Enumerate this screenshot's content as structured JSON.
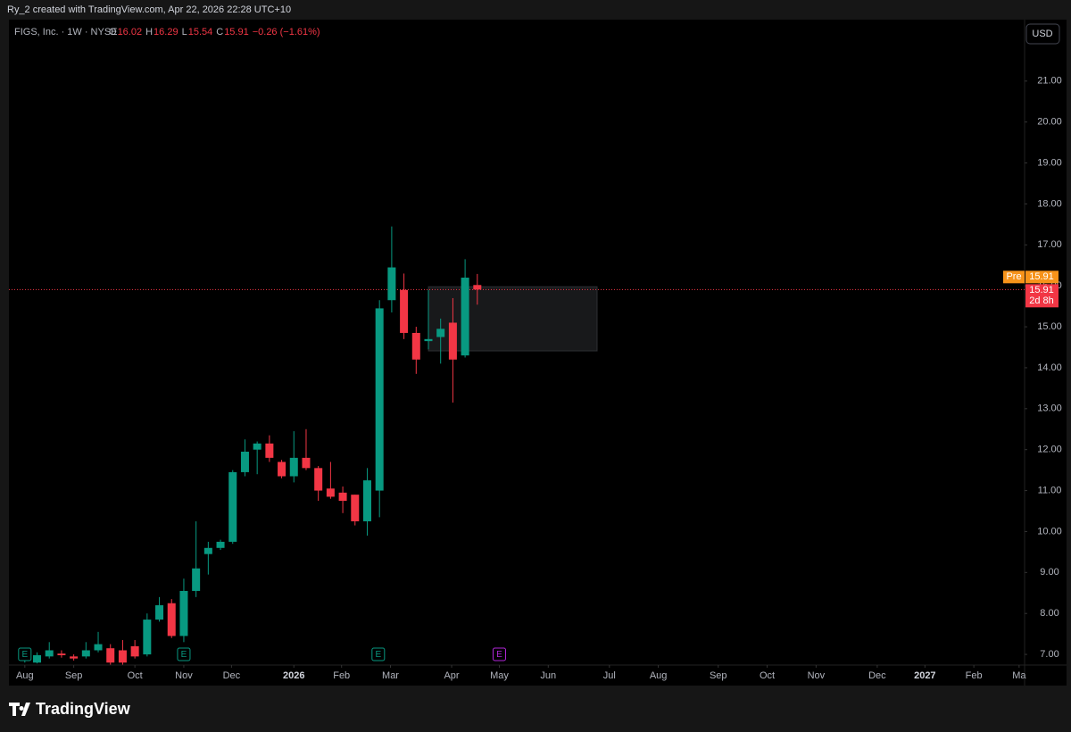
{
  "header": {
    "caption": "Ry_2 created with TradingView.com, Apr 22, 2026 22:28 UTC+10"
  },
  "chart_data": {
    "type": "candlestick",
    "title": "FIGS, Inc. · 1W · NYSE",
    "ohlc_keys": [
      "O",
      "H",
      "L",
      "C"
    ],
    "change": "−0.26 (−1.61%)",
    "currency": "USD",
    "x": [
      0,
      1,
      2,
      3,
      4,
      5,
      6,
      7,
      8,
      9,
      10,
      11,
      12,
      13,
      14,
      15,
      16,
      17,
      18,
      19,
      20,
      21,
      22,
      23,
      24,
      25,
      26,
      27,
      28,
      29,
      30,
      31,
      32,
      33,
      34,
      35,
      36,
      37
    ],
    "open": [
      6.85,
      6.8,
      6.95,
      7.02,
      6.95,
      6.95,
      7.1,
      7.15,
      7.1,
      7.2,
      7.0,
      7.85,
      8.25,
      7.45,
      8.55,
      9.45,
      9.6,
      9.75,
      11.45,
      12.0,
      12.15,
      11.7,
      11.35,
      11.8,
      11.55,
      11.05,
      10.95,
      10.9,
      10.25,
      11.0,
      15.65,
      15.9,
      14.85,
      14.65,
      14.75,
      15.1,
      14.3,
      16.02
    ],
    "high": [
      7.0,
      7.05,
      7.3,
      7.1,
      7.0,
      7.3,
      7.55,
      7.25,
      7.35,
      7.35,
      8.0,
      8.4,
      8.35,
      8.85,
      10.25,
      9.75,
      9.8,
      11.5,
      12.25,
      12.2,
      12.35,
      11.75,
      12.45,
      12.5,
      11.6,
      11.7,
      11.1,
      10.9,
      11.55,
      15.65,
      17.45,
      16.3,
      15.0,
      15.9,
      15.2,
      15.7,
      16.65,
      16.29
    ],
    "low": [
      6.8,
      6.78,
      6.9,
      6.92,
      6.85,
      6.9,
      7.05,
      6.75,
      6.75,
      6.9,
      6.95,
      7.8,
      7.4,
      7.3,
      8.4,
      8.95,
      9.55,
      9.7,
      11.35,
      11.4,
      11.7,
      11.3,
      11.2,
      11.5,
      10.75,
      10.8,
      10.45,
      10.15,
      9.9,
      10.35,
      15.35,
      14.7,
      13.85,
      14.45,
      14.1,
      13.15,
      14.25,
      15.54
    ],
    "close": [
      6.95,
      6.98,
      7.1,
      6.98,
      6.9,
      7.1,
      7.25,
      6.8,
      6.8,
      6.95,
      7.85,
      8.2,
      7.45,
      8.55,
      9.1,
      9.6,
      9.75,
      11.45,
      11.95,
      12.15,
      11.8,
      11.35,
      11.8,
      11.55,
      11.0,
      10.85,
      10.75,
      10.25,
      11.25,
      15.45,
      16.45,
      14.85,
      14.2,
      14.7,
      14.95,
      14.2,
      16.2,
      15.91
    ],
    "up_color": "#089981",
    "down_color": "#f23645",
    "xlim": [
      -1.3,
      81.75
    ],
    "xticks": [
      {
        "value": 0,
        "label": "Aug"
      },
      {
        "value": 4,
        "label": "Sep"
      },
      {
        "value": 9,
        "label": "Oct"
      },
      {
        "value": 13,
        "label": "Nov"
      },
      {
        "value": 16.9,
        "label": "Dec"
      },
      {
        "value": 22,
        "label": "2026"
      },
      {
        "value": 25.9,
        "label": "Feb"
      },
      {
        "value": 29.9,
        "label": "Mar"
      },
      {
        "value": 34.9,
        "label": "Apr"
      },
      {
        "value": 38.8,
        "label": "May"
      },
      {
        "value": 42.8,
        "label": "Jun"
      },
      {
        "value": 47.8,
        "label": "Jul"
      },
      {
        "value": 51.8,
        "label": "Aug"
      },
      {
        "value": 56.7,
        "label": "Sep"
      },
      {
        "value": 60.7,
        "label": "Oct"
      },
      {
        "value": 64.7,
        "label": "Nov"
      },
      {
        "value": 69.7,
        "label": "Dec"
      },
      {
        "value": 73.6,
        "label": "2027"
      },
      {
        "value": 77.6,
        "label": "Feb"
      },
      {
        "value": 81.3,
        "label": "Ma"
      }
    ],
    "ylim": [
      6.74,
      22.5
    ],
    "yticks": [
      {
        "value": 7,
        "label": "7.00"
      },
      {
        "value": 8,
        "label": "8.00"
      },
      {
        "value": 9,
        "label": "9.00"
      },
      {
        "value": 10,
        "label": "10.00"
      },
      {
        "value": 11,
        "label": "11.00"
      },
      {
        "value": 12,
        "label": "12.00"
      },
      {
        "value": 13,
        "label": "13.00"
      },
      {
        "value": 14,
        "label": "14.00"
      },
      {
        "value": 15,
        "label": "15.00"
      },
      {
        "value": 16,
        "label": "16.00"
      },
      {
        "value": 17,
        "label": "17.00"
      },
      {
        "value": 18,
        "label": "18.00"
      },
      {
        "value": 19,
        "label": "19.00"
      },
      {
        "value": 20,
        "label": "20.00"
      },
      {
        "value": 21,
        "label": "21.00"
      }
    ],
    "last_price": 15.91,
    "pre_label": "Pre",
    "countdown": "2d 8h",
    "zone": {
      "x": [
        33,
        46.8
      ],
      "y": [
        14.41,
        15.98
      ]
    },
    "events": [
      {
        "x": 0,
        "label": "E",
        "color": "#089981"
      },
      {
        "x": 13,
        "label": "E",
        "color": "#089981"
      },
      {
        "x": 28.9,
        "label": "E",
        "color": "#089981"
      },
      {
        "x": 38.8,
        "label": "E",
        "color": "#b026d9"
      }
    ]
  },
  "footer": {
    "brand": "TradingView"
  }
}
